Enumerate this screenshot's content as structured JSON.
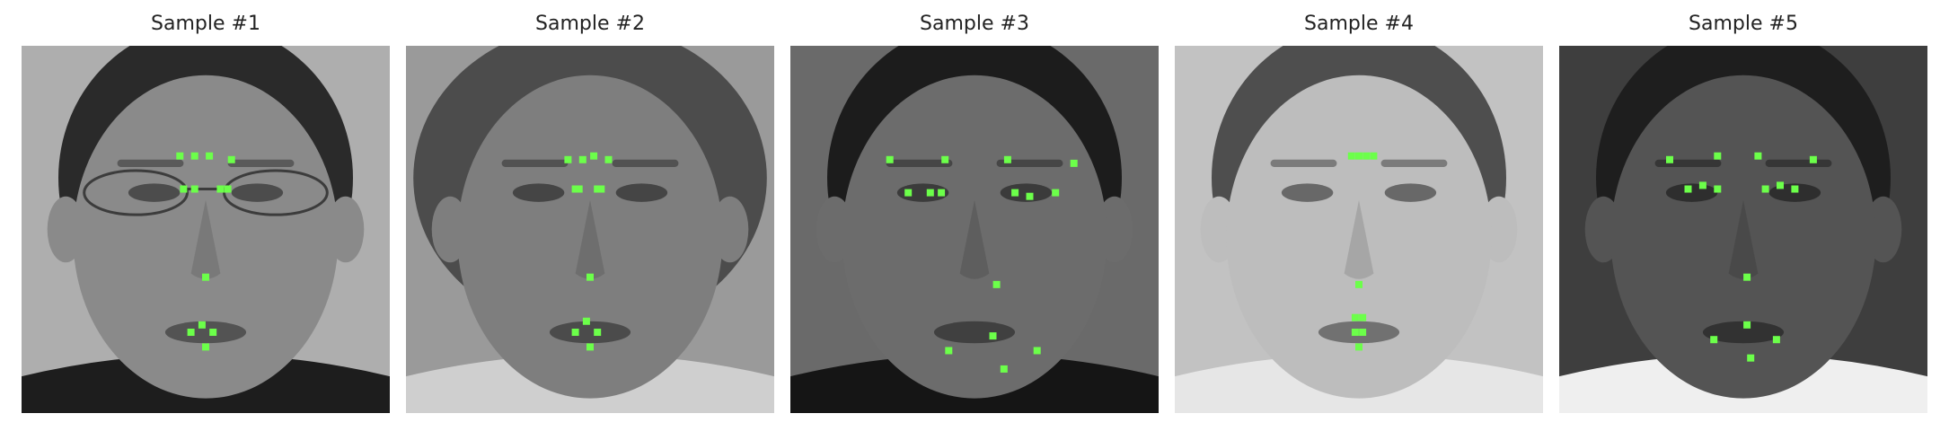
{
  "samples": [
    {
      "title": "Sample #1",
      "tone": {
        "bg": "#aeaeae",
        "hair": "#2a2a2a",
        "skin": "#8a8a8a",
        "shirt": "#1d1d1d"
      },
      "glasses": true,
      "hairstyle": "short",
      "keypoints": [
        [
          0.43,
          0.3
        ],
        [
          0.47,
          0.3
        ],
        [
          0.51,
          0.3
        ],
        [
          0.57,
          0.31
        ],
        [
          0.44,
          0.39
        ],
        [
          0.47,
          0.39
        ],
        [
          0.54,
          0.39
        ],
        [
          0.56,
          0.39
        ],
        [
          0.5,
          0.63
        ],
        [
          0.46,
          0.78
        ],
        [
          0.49,
          0.76
        ],
        [
          0.52,
          0.78
        ],
        [
          0.5,
          0.82
        ]
      ]
    },
    {
      "title": "Sample #2",
      "tone": {
        "bg": "#9a9a9a",
        "hair": "#4c4c4c",
        "skin": "#7e7e7e",
        "shirt": "#cfcfcf"
      },
      "glasses": false,
      "hairstyle": "curly",
      "keypoints": [
        [
          0.44,
          0.31
        ],
        [
          0.48,
          0.31
        ],
        [
          0.51,
          0.3
        ],
        [
          0.55,
          0.31
        ],
        [
          0.46,
          0.39
        ],
        [
          0.47,
          0.39
        ],
        [
          0.52,
          0.39
        ],
        [
          0.53,
          0.39
        ],
        [
          0.5,
          0.63
        ],
        [
          0.46,
          0.78
        ],
        [
          0.49,
          0.75
        ],
        [
          0.52,
          0.78
        ],
        [
          0.5,
          0.82
        ]
      ]
    },
    {
      "title": "Sample #3",
      "tone": {
        "bg": "#6a6a6a",
        "hair": "#1c1c1c",
        "skin": "#6c6c6c",
        "shirt": "#151515"
      },
      "glasses": false,
      "hairstyle": "short",
      "keypoints": [
        [
          0.27,
          0.31
        ],
        [
          0.42,
          0.31
        ],
        [
          0.59,
          0.31
        ],
        [
          0.77,
          0.32
        ],
        [
          0.32,
          0.4
        ],
        [
          0.38,
          0.4
        ],
        [
          0.41,
          0.4
        ],
        [
          0.61,
          0.4
        ],
        [
          0.65,
          0.41
        ],
        [
          0.72,
          0.4
        ],
        [
          0.56,
          0.65
        ],
        [
          0.55,
          0.79
        ],
        [
          0.43,
          0.83
        ],
        [
          0.67,
          0.83
        ],
        [
          0.58,
          0.88
        ]
      ]
    },
    {
      "title": "Sample #4",
      "tone": {
        "bg": "#c2c2c2",
        "hair": "#4e4e4e",
        "skin": "#bdbdbd",
        "shirt": "#e6e6e6"
      },
      "glasses": false,
      "hairstyle": "short",
      "keypoints": [
        [
          0.48,
          0.3
        ],
        [
          0.5,
          0.3
        ],
        [
          0.52,
          0.3
        ],
        [
          0.54,
          0.3
        ],
        [
          0.5,
          0.65
        ],
        [
          0.49,
          0.74
        ],
        [
          0.51,
          0.74
        ],
        [
          0.49,
          0.78
        ],
        [
          0.51,
          0.78
        ],
        [
          0.5,
          0.82
        ]
      ]
    },
    {
      "title": "Sample #5",
      "tone": {
        "bg": "#3e3e3e",
        "hair": "#1e1e1e",
        "skin": "#545454",
        "shirt": "#efefef"
      },
      "glasses": false,
      "hairstyle": "short",
      "keypoints": [
        [
          0.3,
          0.31
        ],
        [
          0.43,
          0.3
        ],
        [
          0.54,
          0.3
        ],
        [
          0.69,
          0.31
        ],
        [
          0.35,
          0.39
        ],
        [
          0.39,
          0.38
        ],
        [
          0.43,
          0.39
        ],
        [
          0.56,
          0.39
        ],
        [
          0.6,
          0.38
        ],
        [
          0.64,
          0.39
        ],
        [
          0.51,
          0.63
        ],
        [
          0.51,
          0.76
        ],
        [
          0.42,
          0.8
        ],
        [
          0.59,
          0.8
        ],
        [
          0.52,
          0.85
        ]
      ]
    }
  ]
}
